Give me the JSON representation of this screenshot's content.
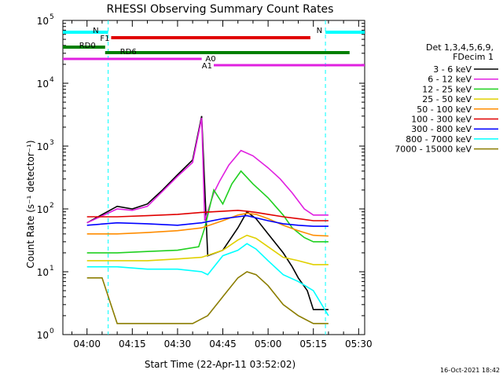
{
  "chart_data": {
    "type": "line",
    "title": "RHESSI Observing Summary Count Rates",
    "xlabel": "Start Time (22-Apr-11 03:52:02)",
    "ylabel": "Count Rate (s⁻¹ detector⁻¹)",
    "y_scale": "log",
    "ylim": [
      1,
      100000
    ],
    "xlim": [
      "03:52",
      "05:32"
    ],
    "x_tick_labels": [
      "04:00",
      "04:15",
      "04:30",
      "04:45",
      "05:00",
      "05:15",
      "05:30"
    ],
    "y_tick_labels": [
      {
        "base": "10",
        "exp": "0"
      },
      {
        "base": "10",
        "exp": "1"
      },
      {
        "base": "10",
        "exp": "2"
      },
      {
        "base": "10",
        "exp": "3"
      },
      {
        "base": "10",
        "exp": "4"
      },
      {
        "base": "10",
        "exp": "5"
      }
    ],
    "legend_header": [
      "Det 1,3,4,5,6,9,",
      "FDecim 1"
    ],
    "legend_placement": "right",
    "series": [
      {
        "name": "3 - 6 keV",
        "color": "#000000",
        "x": [
          "04:00",
          "04:10",
          "04:15",
          "04:20",
          "04:25",
          "04:30",
          "04:35",
          "04:38",
          "04:40",
          "04:45",
          "04:50",
          "04:53",
          "04:56",
          "05:00",
          "05:05",
          "05:08",
          "05:10",
          "05:13",
          "05:15",
          "05:20"
        ],
        "y": [
          60,
          110,
          100,
          120,
          200,
          350,
          600,
          3000,
          18,
          22,
          50,
          90,
          70,
          40,
          20,
          12,
          8,
          5,
          2.5,
          2.5
        ]
      },
      {
        "name": "6 - 12 keV",
        "color": "#e020e0",
        "x": [
          "04:00",
          "04:10",
          "04:15",
          "04:20",
          "04:25",
          "04:30",
          "04:35",
          "04:38",
          "04:39",
          "04:42",
          "04:44",
          "04:47",
          "04:51",
          "04:55",
          "05:00",
          "05:04",
          "05:08",
          "05:12",
          "05:15",
          "05:20"
        ],
        "y": [
          60,
          100,
          95,
          110,
          190,
          330,
          550,
          2800,
          65,
          180,
          280,
          500,
          850,
          700,
          450,
          300,
          180,
          100,
          80,
          80
        ]
      },
      {
        "name": "12 - 25 keV",
        "color": "#20d020",
        "x": [
          "04:00",
          "04:10",
          "04:20",
          "04:30",
          "04:37",
          "04:39",
          "04:42",
          "04:45",
          "04:48",
          "04:51",
          "04:55",
          "05:00",
          "05:05",
          "05:08",
          "05:12",
          "05:15",
          "05:20"
        ],
        "y": [
          20,
          20,
          21,
          22,
          25,
          50,
          200,
          120,
          250,
          400,
          250,
          150,
          80,
          50,
          35,
          30,
          30
        ]
      },
      {
        "name": "25 - 50 keV",
        "color": "#e0d000",
        "x": [
          "04:00",
          "04:10",
          "04:20",
          "04:30",
          "04:38",
          "04:45",
          "04:50",
          "04:53",
          "04:56",
          "05:00",
          "05:05",
          "05:10",
          "05:15",
          "05:20"
        ],
        "y": [
          15,
          15,
          15,
          16,
          17,
          22,
          32,
          38,
          34,
          25,
          17,
          15,
          13,
          13
        ]
      },
      {
        "name": "50 - 100 keV",
        "color": "#ff8c00",
        "x": [
          "04:00",
          "04:10",
          "04:20",
          "04:30",
          "04:38",
          "04:45",
          "04:50",
          "04:53",
          "04:56",
          "05:00",
          "05:05",
          "05:10",
          "05:15",
          "05:20"
        ],
        "y": [
          40,
          40,
          42,
          45,
          50,
          65,
          80,
          85,
          82,
          70,
          55,
          45,
          38,
          37
        ]
      },
      {
        "name": "100 - 300 keV",
        "color": "#e00000",
        "x": [
          "04:00",
          "04:10",
          "04:20",
          "04:30",
          "04:38",
          "04:45",
          "04:50",
          "04:53",
          "04:56",
          "05:00",
          "05:05",
          "05:10",
          "05:15",
          "05:20"
        ],
        "y": [
          75,
          75,
          78,
          82,
          88,
          92,
          95,
          92,
          88,
          82,
          75,
          70,
          65,
          65
        ]
      },
      {
        "name": "300 - 800 keV",
        "color": "#0000ff",
        "x": [
          "04:00",
          "04:10",
          "04:20",
          "04:30",
          "04:38",
          "04:45",
          "04:50",
          "04:53",
          "04:56",
          "05:00",
          "05:05",
          "05:10",
          "05:15",
          "05:20"
        ],
        "y": [
          55,
          60,
          58,
          55,
          60,
          70,
          75,
          78,
          72,
          65,
          58,
          55,
          53,
          53
        ]
      },
      {
        "name": "800 - 7000 keV",
        "color": "#00ffff",
        "x": [
          "04:00",
          "04:10",
          "04:20",
          "04:30",
          "04:38",
          "04:40",
          "04:45",
          "04:50",
          "04:53",
          "04:56",
          "05:00",
          "05:05",
          "05:10",
          "05:15",
          "05:20"
        ],
        "y": [
          12,
          12,
          11,
          11,
          10,
          9,
          18,
          22,
          28,
          23,
          15,
          9,
          7,
          5,
          2
        ]
      },
      {
        "name": "7000 - 15000 keV",
        "color": "#8b7d00",
        "x": [
          "04:00",
          "04:05",
          "04:10",
          "04:20",
          "04:30",
          "04:35",
          "04:40",
          "04:45",
          "04:50",
          "04:53",
          "04:56",
          "05:00",
          "05:05",
          "05:10",
          "05:15",
          "05:20"
        ],
        "y": [
          8,
          8,
          1.5,
          1.5,
          1.5,
          1.5,
          2,
          4,
          8,
          10,
          9,
          6,
          3,
          2,
          1.5,
          1.5
        ]
      }
    ],
    "annotations": [
      {
        "label": "N",
        "color": "#00ffff",
        "x_start": "03:52",
        "x_end": "04:07"
      },
      {
        "label": "N",
        "color": "#00ffff",
        "x_start": "05:19",
        "x_end": "05:32"
      },
      {
        "label": "F1",
        "color": "#e00000",
        "x_start": "04:08",
        "x_end": "05:14"
      },
      {
        "label": "RD0",
        "color": "#008000",
        "x_start": "03:52",
        "x_end": "04:06"
      },
      {
        "label": "RD6",
        "color": "#008000",
        "x_start": "04:06",
        "x_end": "05:27"
      },
      {
        "label": "A0",
        "color": "#e020e0",
        "x_start": "03:52",
        "x_end": "04:38"
      },
      {
        "label": "A1",
        "color": "#e020e0",
        "x_start": "04:42",
        "x_end": "05:32"
      }
    ]
  },
  "footer": {
    "timestamp": "16-Oct-2021 18:42"
  }
}
